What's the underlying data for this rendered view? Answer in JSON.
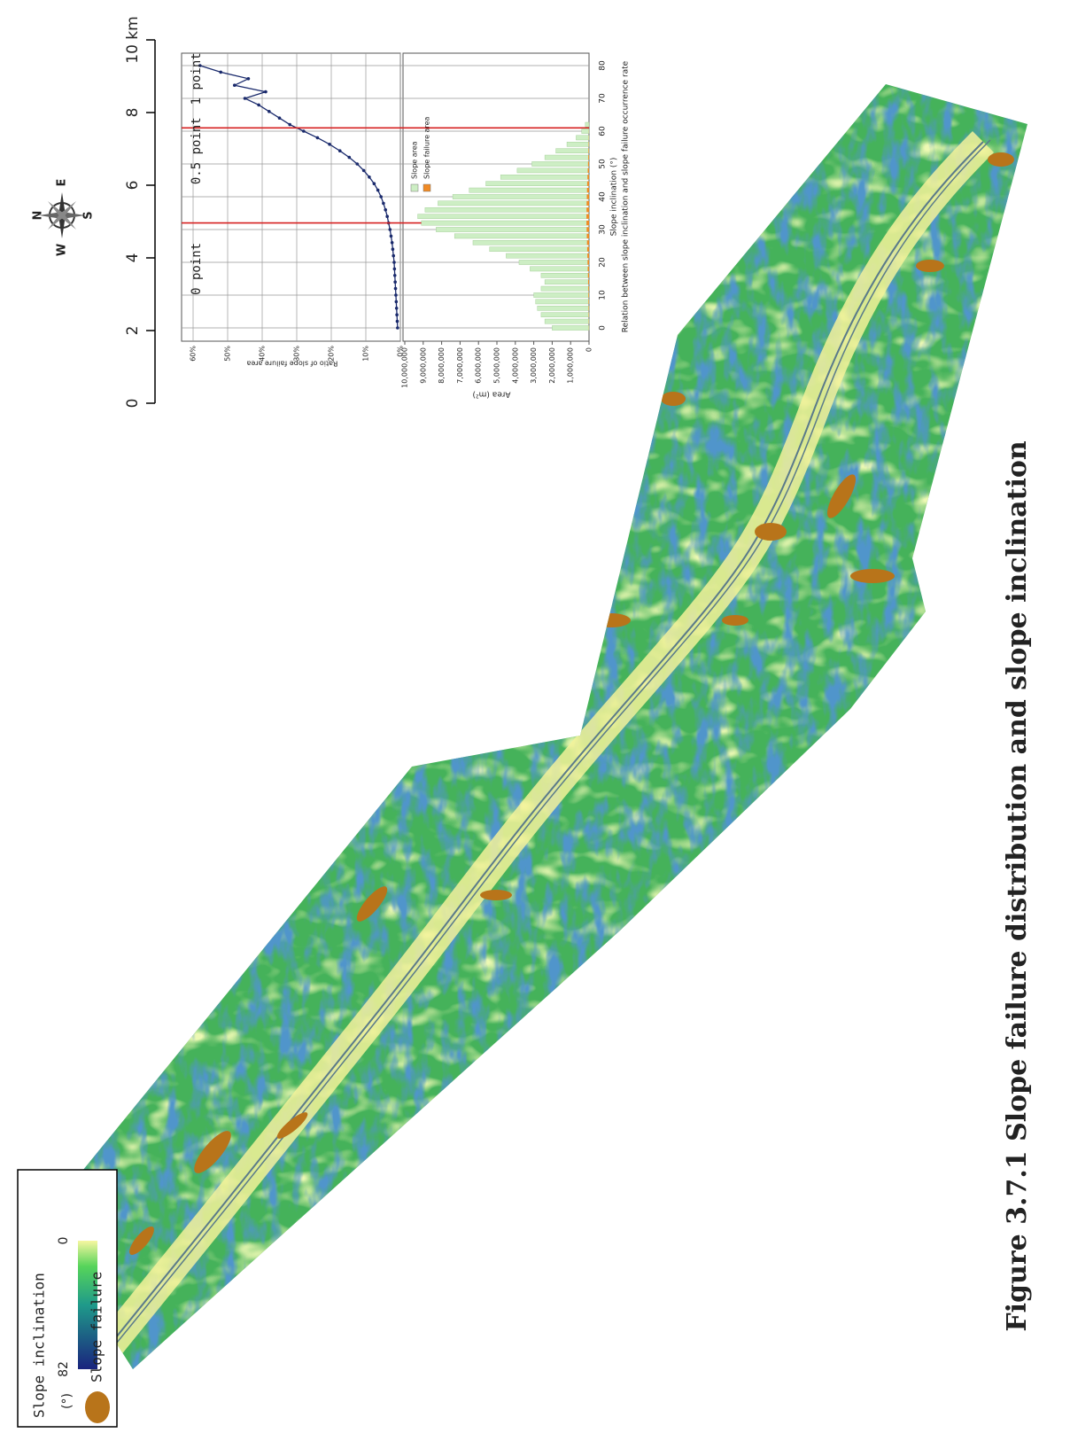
{
  "caption": "Figure 3.7.1 Slope failure distribution and slope inclination",
  "legend": {
    "title": "Slope inclination",
    "unit": "(°)",
    "max": 82,
    "min": 0,
    "max_color": "#1a237e",
    "min_color": "#f7f7a0",
    "failure_label": "Slope failure",
    "failure_color": "#b8741a"
  },
  "scale_bar": {
    "lim": [
      0,
      10
    ],
    "ticks": [
      0,
      2,
      4,
      6,
      8,
      {
        "value": 10,
        "label": "10 km"
      }
    ]
  },
  "compass": {
    "north": "N",
    "east": "E",
    "south": "S",
    "west": "W"
  },
  "chart_data": [
    {
      "type": "line",
      "ylabel": "Ratio of slope failure area",
      "color": "#1a2a6c",
      "x": [
        0,
        2,
        4,
        6,
        8,
        10,
        12,
        14,
        16,
        18,
        20,
        22,
        24,
        26,
        28,
        30,
        32,
        34,
        36,
        38,
        40,
        42,
        44,
        46,
        48,
        50,
        52,
        54,
        56,
        58,
        60,
        62,
        64,
        66,
        68,
        70,
        72,
        74,
        76,
        78,
        80
      ],
      "values": [
        0.8,
        0.9,
        1.0,
        1.1,
        1.2,
        1.3,
        1.4,
        1.5,
        1.6,
        1.7,
        1.8,
        2.0,
        2.2,
        2.4,
        2.7,
        3.0,
        3.4,
        3.8,
        4.3,
        4.9,
        5.6,
        6.5,
        7.6,
        9.0,
        10.6,
        12.5,
        14.8,
        17.5,
        20.5,
        24,
        28,
        32,
        35,
        38,
        41,
        45,
        39,
        48,
        44,
        52,
        58
      ],
      "xlim": [
        0,
        80
      ],
      "ylim": [
        0,
        60
      ],
      "yticks": [
        {
          "value": 0,
          "label": "0%"
        },
        {
          "value": 10,
          "label": "10%"
        },
        {
          "value": 20,
          "label": "20%"
        },
        {
          "value": 30,
          "label": "30%"
        },
        {
          "value": 40,
          "label": "40%"
        },
        {
          "value": 50,
          "label": "50%"
        },
        {
          "value": 60,
          "label": "60%"
        }
      ],
      "grid": true,
      "reference_x": [
        32,
        61
      ],
      "reference_color": "#d62020",
      "annotations": [
        {
          "text": "0 point",
          "x": 18
        },
        {
          "text": "0.5 point",
          "x": 54
        },
        {
          "text": "1 point",
          "x": 76
        }
      ]
    },
    {
      "type": "bar",
      "title": "Relation between slope inclination and slope failure occurrence rate",
      "xlabel": "Slope inclination (°)",
      "ylabel": "Area (m²)",
      "x": [
        0,
        2,
        4,
        6,
        8,
        10,
        12,
        14,
        16,
        18,
        20,
        22,
        24,
        26,
        28,
        30,
        32,
        34,
        36,
        38,
        40,
        42,
        44,
        46,
        48,
        50,
        52,
        54,
        56,
        58,
        60,
        62
      ],
      "series": [
        {
          "name": "Slope area",
          "color": "#cdeec4",
          "values": [
            2000000,
            2400000,
            2600000,
            2800000,
            2900000,
            3000000,
            2600000,
            2400000,
            2600000,
            3200000,
            3800000,
            4500000,
            5400000,
            6300000,
            7300000,
            8300000,
            9100000,
            9300000,
            8900000,
            8200000,
            7400000,
            6500000,
            5600000,
            4800000,
            3900000,
            3100000,
            2400000,
            1800000,
            1200000,
            700000,
            400000,
            200000
          ]
        },
        {
          "name": "Slope failure area",
          "color": "#f08a24",
          "values": [
            10000,
            15000,
            20000,
            25000,
            30000,
            35000,
            40000,
            50000,
            60000,
            70000,
            80000,
            90000,
            100000,
            110000,
            120000,
            130000,
            140000,
            140000,
            135000,
            130000,
            120000,
            110000,
            100000,
            85000,
            70000,
            55000,
            40000,
            30000,
            20000,
            12000,
            8000,
            4000
          ]
        }
      ],
      "xlim": [
        0,
        80
      ],
      "xticks": [
        0,
        10,
        20,
        30,
        40,
        50,
        60,
        70,
        80
      ],
      "ylim": [
        0,
        10000000
      ],
      "yticks": [
        0,
        {
          "value": 1000000,
          "label": "1,000,000"
        },
        {
          "value": 2000000,
          "label": "2,000,000"
        },
        {
          "value": 3000000,
          "label": "3,000,000"
        },
        {
          "value": 4000000,
          "label": "4,000,000"
        },
        {
          "value": 5000000,
          "label": "5,000,000"
        },
        {
          "value": 6000000,
          "label": "6,000,000"
        },
        {
          "value": 7000000,
          "label": "7,000,000"
        },
        {
          "value": 8000000,
          "label": "8,000,000"
        },
        {
          "value": 9000000,
          "label": "9,000,000"
        },
        {
          "value": 10000000,
          "label": "10,000,000"
        }
      ],
      "legend": "upper right"
    }
  ]
}
